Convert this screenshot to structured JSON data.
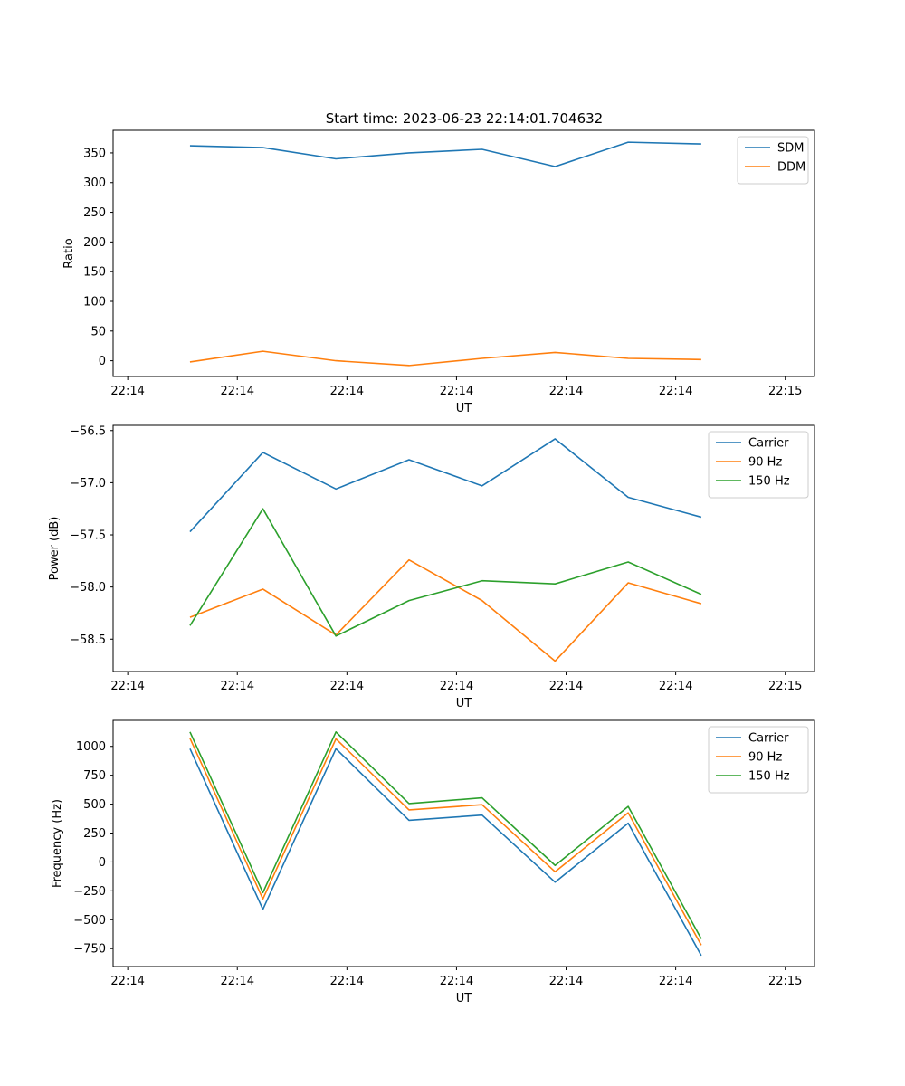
{
  "title": "Start time: 2023-06-23 22:14:01.704632",
  "colors": {
    "blue": "#1f77b4",
    "orange": "#ff7f0e",
    "green": "#2ca02c"
  },
  "chart_data": [
    {
      "type": "line",
      "xlabel": "UT",
      "ylabel": "Ratio",
      "x_unit": "seconds since 22:14:00 (inferred; all ticks print as HH:MM)",
      "x": [
        1.704632,
        3.7,
        5.7,
        7.7,
        9.7,
        11.7,
        13.7,
        15.7
      ],
      "xlim": [
        -0.4,
        18.8
      ],
      "xticks": [
        0,
        3,
        6,
        9,
        12,
        15,
        18
      ],
      "xtick_labels": [
        "22:14",
        "22:14",
        "22:14",
        "22:14",
        "22:14",
        "22:14",
        "22:15"
      ],
      "ylim": [
        -26.5,
        388
      ],
      "yticks": [
        0,
        50,
        100,
        150,
        200,
        250,
        300,
        350
      ],
      "ytick_labels": [
        "0",
        "50",
        "100",
        "150",
        "200",
        "250",
        "300",
        "350"
      ],
      "legend_loc": "top-right",
      "series": [
        {
          "name": "SDM",
          "color": "#1f77b4",
          "values": [
            362,
            359,
            340,
            350,
            356,
            327,
            368,
            365
          ]
        },
        {
          "name": "DDM",
          "color": "#ff7f0e",
          "values": [
            -2,
            16,
            0,
            -8,
            4,
            14,
            4,
            2
          ]
        }
      ]
    },
    {
      "type": "line",
      "xlabel": "UT",
      "ylabel": "Power (dB)",
      "x_unit": "seconds since 22:14:00 (inferred; all ticks print as HH:MM)",
      "x": [
        1.704632,
        3.7,
        5.7,
        7.7,
        9.7,
        11.7,
        13.7,
        15.7
      ],
      "xlim": [
        -0.4,
        18.8
      ],
      "xticks": [
        0,
        3,
        6,
        9,
        12,
        15,
        18
      ],
      "xtick_labels": [
        "22:14",
        "22:14",
        "22:14",
        "22:14",
        "22:14",
        "22:14",
        "22:15"
      ],
      "ylim": [
        -58.81,
        -56.45
      ],
      "yticks": [
        -58.5,
        -58.0,
        -57.5,
        -57.0,
        -56.5
      ],
      "ytick_labels": [
        "−58.5",
        "−58.0",
        "−57.5",
        "−57.0",
        "−56.5"
      ],
      "legend_loc": "top-right",
      "series": [
        {
          "name": "Carrier",
          "color": "#1f77b4",
          "values": [
            -57.47,
            -56.71,
            -57.06,
            -56.78,
            -57.03,
            -56.58,
            -57.14,
            -57.33
          ]
        },
        {
          "name": "90 Hz",
          "color": "#ff7f0e",
          "values": [
            -58.29,
            -58.02,
            -58.46,
            -57.74,
            -58.13,
            -58.71,
            -57.96,
            -58.16
          ]
        },
        {
          "name": "150 Hz",
          "color": "#2ca02c",
          "values": [
            -58.37,
            -57.25,
            -58.47,
            -58.13,
            -57.94,
            -57.97,
            -57.76,
            -58.07
          ]
        }
      ]
    },
    {
      "type": "line",
      "xlabel": "UT",
      "ylabel": "Frequency (Hz)",
      "x_unit": "seconds since 22:14:00 (inferred; all ticks print as HH:MM)",
      "x": [
        1.704632,
        3.7,
        5.7,
        7.7,
        9.7,
        11.7,
        13.7,
        15.7
      ],
      "xlim": [
        -0.4,
        18.8
      ],
      "xticks": [
        0,
        3,
        6,
        9,
        12,
        15,
        18
      ],
      "xtick_labels": [
        "22:14",
        "22:14",
        "22:14",
        "22:14",
        "22:14",
        "22:14",
        "22:15"
      ],
      "ylim": [
        -905,
        1225
      ],
      "yticks": [
        -750,
        -500,
        -250,
        0,
        250,
        500,
        750,
        1000
      ],
      "ytick_labels": [
        "−750",
        "−500",
        "−250",
        "0",
        "250",
        "500",
        "750",
        "1000"
      ],
      "legend_loc": "top-right",
      "series": [
        {
          "name": "Carrier",
          "color": "#1f77b4",
          "values": [
            980,
            -410,
            980,
            360,
            405,
            -175,
            335,
            -810
          ]
        },
        {
          "name": "90 Hz",
          "color": "#ff7f0e",
          "values": [
            1070,
            -320,
            1065,
            450,
            495,
            -85,
            425,
            -720
          ]
        },
        {
          "name": "150 Hz",
          "color": "#2ca02c",
          "values": [
            1125,
            -265,
            1125,
            505,
            555,
            -30,
            480,
            -665
          ]
        }
      ]
    }
  ]
}
